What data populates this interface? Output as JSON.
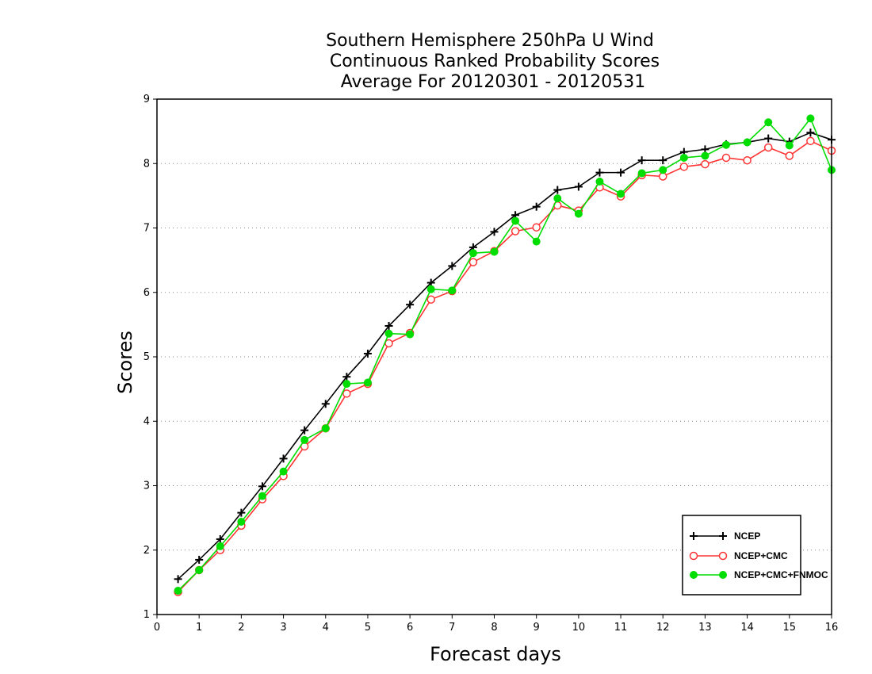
{
  "chart_data": {
    "type": "line",
    "title": [
      "Southern Hemisphere 250hPa U Wind",
      "Continuous Ranked Probability Scores",
      "Average For 20120301 - 20120531"
    ],
    "xlabel": "Forecast days",
    "ylabel": "Scores",
    "xlim": [
      0,
      16
    ],
    "ylim": [
      1,
      9
    ],
    "xticks": [
      "0",
      "1",
      "2",
      "3",
      "4",
      "5",
      "6",
      "7",
      "8",
      "9",
      "10",
      "11",
      "12",
      "13",
      "14",
      "15",
      "16"
    ],
    "yticks": [
      "1",
      "2",
      "3",
      "4",
      "5",
      "6",
      "7",
      "8",
      "9"
    ],
    "grid": "horizontal dotted",
    "legend": "bottom-right",
    "x": [
      0.5,
      1,
      1.5,
      2,
      2.5,
      3,
      3.5,
      4,
      4.5,
      5,
      5.5,
      6,
      6.5,
      7,
      7.5,
      8,
      8.5,
      9,
      9.5,
      10,
      10.5,
      11,
      11.5,
      12,
      12.5,
      13,
      13.5,
      14,
      14.5,
      15,
      15.5,
      16
    ],
    "series": [
      {
        "name": "NCEP",
        "color": "#000000",
        "marker": "plus",
        "values": [
          1.55,
          1.85,
          2.17,
          2.58,
          2.99,
          3.42,
          3.86,
          4.27,
          4.69,
          5.05,
          5.48,
          5.81,
          6.15,
          6.41,
          6.7,
          6.94,
          7.2,
          7.33,
          7.59,
          7.64,
          7.86,
          7.86,
          8.05,
          8.05,
          8.18,
          8.22,
          8.3,
          8.33,
          8.39,
          8.34,
          8.48,
          8.37
        ]
      },
      {
        "name": "NCEP+CMC",
        "color": "#ff3333",
        "marker": "open-circle",
        "values": [
          1.35,
          1.69,
          2.0,
          2.38,
          2.79,
          3.15,
          3.61,
          3.89,
          4.43,
          4.58,
          5.21,
          5.37,
          5.89,
          6.02,
          6.47,
          6.64,
          6.95,
          7.01,
          7.35,
          7.27,
          7.63,
          7.49,
          7.82,
          7.8,
          7.95,
          7.99,
          8.09,
          8.05,
          8.25,
          8.12,
          8.35,
          8.2
        ]
      },
      {
        "name": "NCEP+CMC+FNMOC",
        "color": "#00dd00",
        "marker": "filled-circle",
        "values": [
          1.37,
          1.69,
          2.06,
          2.44,
          2.84,
          3.22,
          3.71,
          3.89,
          4.58,
          4.6,
          5.36,
          5.35,
          6.05,
          6.03,
          6.61,
          6.63,
          7.11,
          6.79,
          7.46,
          7.22,
          7.72,
          7.53,
          7.85,
          7.9,
          8.09,
          8.12,
          8.29,
          8.33,
          8.64,
          8.28,
          8.7,
          7.9
        ]
      }
    ]
  }
}
